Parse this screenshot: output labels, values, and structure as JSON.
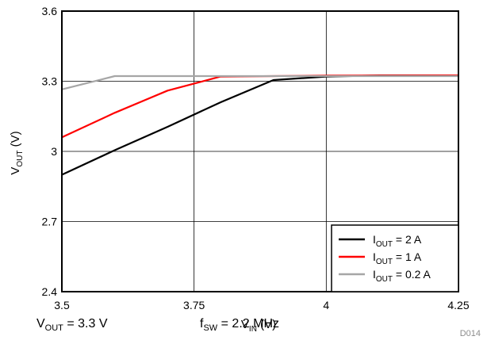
{
  "chart_data": {
    "type": "line",
    "xlabel": {
      "main": "V",
      "sub": "IN",
      "unit": " (V)"
    },
    "ylabel": {
      "main": "V",
      "sub": "OUT",
      "unit": " (V)"
    },
    "xlim": [
      3.5,
      4.25
    ],
    "ylim": [
      2.4,
      3.6
    ],
    "x_ticks": [
      3.5,
      3.75,
      4,
      4.25
    ],
    "x_tick_labels": [
      "3.5",
      "3.75",
      "4",
      "4.25"
    ],
    "y_ticks": [
      2.4,
      2.7,
      3.0,
      3.3,
      3.6
    ],
    "y_tick_labels": [
      "2.4",
      "2.7",
      "3",
      "3.3",
      "3.6"
    ],
    "grid": true,
    "legend_position": "bottom-right",
    "series": [
      {
        "name": "I_OUT = 2 A",
        "label_main": "I",
        "label_sub": "OUT",
        "label_rest": " = 2 A",
        "color": "#000000",
        "x": [
          3.5,
          3.6,
          3.7,
          3.8,
          3.9,
          4.0,
          4.1,
          4.25
        ],
        "y": [
          2.9,
          3.005,
          3.105,
          3.21,
          3.305,
          3.32,
          3.325,
          3.325
        ]
      },
      {
        "name": "I_OUT = 1 A",
        "label_main": "I",
        "label_sub": "OUT",
        "label_rest": " = 1 A",
        "color": "#ff0000",
        "x": [
          3.5,
          3.6,
          3.7,
          3.8,
          3.9,
          4.0,
          4.25
        ],
        "y": [
          3.06,
          3.165,
          3.26,
          3.32,
          3.322,
          3.324,
          3.325
        ]
      },
      {
        "name": "I_OUT = 0.2 A",
        "label_main": "I",
        "label_sub": "OUT",
        "label_rest": " = 0.2 A",
        "color": "#a6a6a6",
        "x": [
          3.5,
          3.6,
          3.7,
          3.8,
          4.0,
          4.25
        ],
        "y": [
          3.265,
          3.322,
          3.322,
          3.322,
          3.322,
          3.322
        ]
      }
    ],
    "figure_id": "D014"
  },
  "conditions": {
    "vout": {
      "main": "V",
      "sub": "OUT",
      "rest": " = 3.3 V"
    },
    "fsw": {
      "main": "f",
      "sub": "SW",
      "rest": " = 2.2 MHz"
    }
  }
}
